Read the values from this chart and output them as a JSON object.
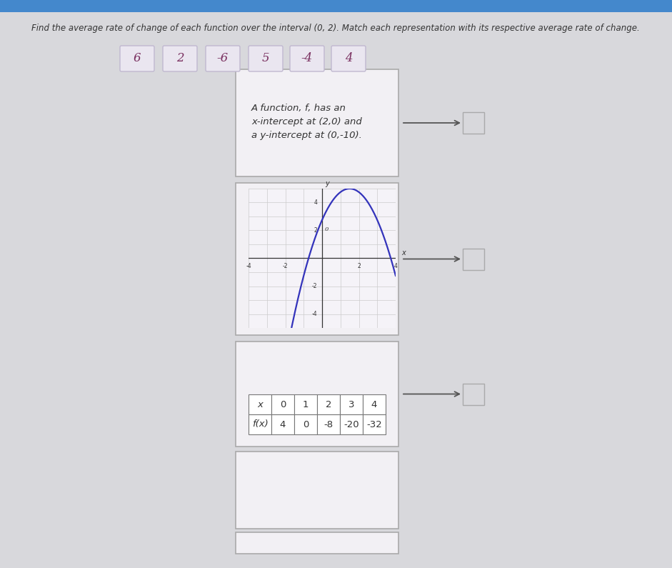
{
  "title": "Find the average rate of change of each function over the interval (0, 2). Match each representation with its respective average rate of change.",
  "answer_tiles": [
    "6",
    "2",
    "-6",
    "5",
    "-4",
    "4"
  ],
  "background_color": "#d8d8dc",
  "box1_text_lines": [
    "A function, f, has an",
    "x-intercept at (2,0) and",
    "a y-intercept at (0,-10)."
  ],
  "table_x_values": [
    "x",
    "0",
    "1",
    "2",
    "3",
    "4"
  ],
  "table_f_values": [
    "f(x)",
    "4",
    "0",
    "-8",
    "-20",
    "-32"
  ],
  "graph_color": "#3333bb",
  "tile_text_color": "#7a3060",
  "tile_bg": "#eae6f0",
  "tile_border": "#c0b8d0",
  "answer_box_bg": "#d8d8dc",
  "content_box_bg": "#f2f0f4",
  "content_box_border": "#aaaaaa",
  "title_color": "#333333",
  "text_color": "#444444"
}
